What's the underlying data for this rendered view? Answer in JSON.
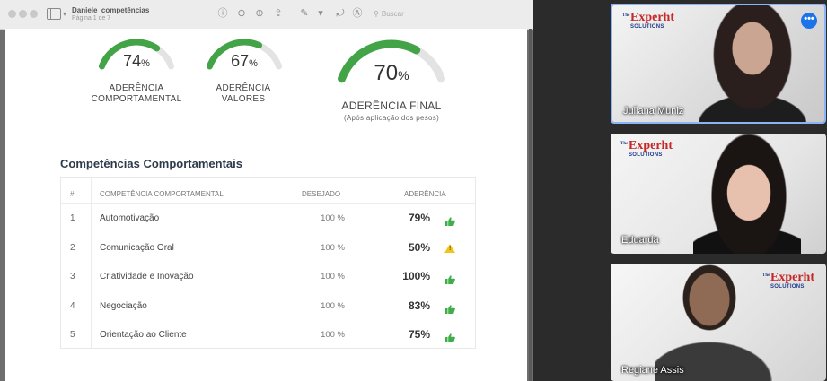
{
  "window": {
    "doc_title": "Daniele_competências",
    "doc_subtitle": "Página 1 de 7",
    "search_placeholder": "Buscar"
  },
  "gauges": [
    {
      "value": 74,
      "value_label": "74",
      "unit": "%",
      "label_line1": "ADERÊNCIA",
      "label_line2": "COMPORTAMENTAL"
    },
    {
      "value": 67,
      "value_label": "67",
      "unit": "%",
      "label_line1": "ADERÊNCIA",
      "label_line2": "VALORES"
    },
    {
      "value": 70,
      "value_label": "70",
      "unit": "%",
      "label_line1": "ADERÊNCIA FINAL",
      "label_line2": "(Após aplicação dos pesos)"
    }
  ],
  "section": {
    "title": "Competências Comportamentais"
  },
  "table": {
    "headers": [
      "#",
      "COMPETÊNCIA COMPORTAMENTAL",
      "DESEJADO",
      "ADERÊNCIA"
    ],
    "rows": [
      {
        "num": "1",
        "name": "Automotivação",
        "desired": "100 %",
        "adherence": "79%",
        "status": "thumbs-up"
      },
      {
        "num": "2",
        "name": "Comunicação Oral",
        "desired": "100 %",
        "adherence": "50%",
        "status": "warning"
      },
      {
        "num": "3",
        "name": "Criatividade e Inovação",
        "desired": "100 %",
        "adherence": "100%",
        "status": "thumbs-up"
      },
      {
        "num": "4",
        "name": "Negociação",
        "desired": "100 %",
        "adherence": "83%",
        "status": "thumbs-up"
      },
      {
        "num": "5",
        "name": "Orientação ao Cliente",
        "desired": "100 %",
        "adherence": "75%",
        "status": "thumbs-up"
      }
    ]
  },
  "participants": [
    {
      "name": "Juliana Muniz",
      "active_speaker": true
    },
    {
      "name": "Eduarda",
      "active_speaker": false
    },
    {
      "name": "Regiane Assis",
      "active_speaker": false
    }
  ],
  "brand": {
    "logo_text": "Experht",
    "logo_sub": "SOLUTIONS",
    "logo_prefix": "The"
  },
  "colors": {
    "gauge_green": "#43a447",
    "gauge_track": "#e3e3e3",
    "thumb_green": "#3fae49",
    "warning_yellow": "#f2c41d",
    "active_speaker_border": "#8ab4f8"
  }
}
